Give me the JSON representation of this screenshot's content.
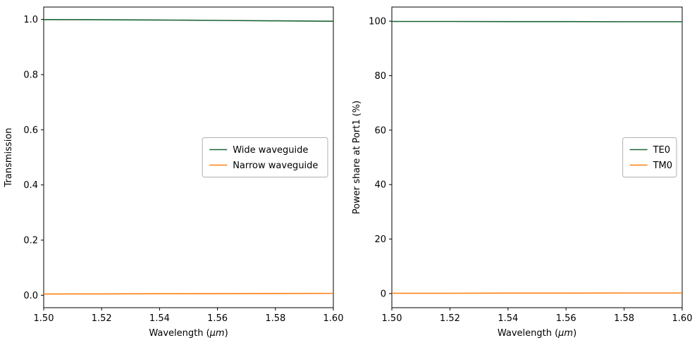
{
  "figure": {
    "background": "#ffffff",
    "axes_color": "#000000",
    "legend_border_color": "#b0b0b0",
    "legend_background": "#ffffff"
  },
  "chart_data": [
    {
      "type": "line",
      "title": "",
      "xlabel": {
        "pre": "Wavelength (",
        "math": "μm",
        "post": ")"
      },
      "ylabel": "Transmission",
      "xlim": [
        1.5,
        1.6
      ],
      "ylim": [
        -0.045,
        1.045
      ],
      "xticks": [
        1.5,
        1.52,
        1.54,
        1.56,
        1.58,
        1.6
      ],
      "xtick_labels": [
        "1.50",
        "1.52",
        "1.54",
        "1.56",
        "1.58",
        "1.60"
      ],
      "yticks": [
        0.0,
        0.2,
        0.4,
        0.6,
        0.8,
        1.0
      ],
      "ytick_labels": [
        "0.0",
        "0.2",
        "0.4",
        "0.6",
        "0.8",
        "1.0"
      ],
      "grid": false,
      "legend_position": "center-right",
      "x": [
        1.5,
        1.52,
        1.54,
        1.56,
        1.58,
        1.6
      ],
      "series": [
        {
          "name": "Wide waveguide",
          "color": "#1a6334",
          "values": [
            0.9995,
            0.999,
            0.998,
            0.9965,
            0.995,
            0.9935
          ]
        },
        {
          "name": "Narrow waveguide",
          "color": "#ff7f0e",
          "values": [
            0.0045,
            0.005,
            0.0055,
            0.006,
            0.0065,
            0.007
          ]
        }
      ]
    },
    {
      "type": "line",
      "title": "",
      "xlabel": {
        "pre": "Wavelength (",
        "math": "μm",
        "post": ")"
      },
      "ylabel": "Power share at Port1 (%)",
      "xlim": [
        1.5,
        1.6
      ],
      "ylim": [
        -5.2,
        105.2
      ],
      "xticks": [
        1.5,
        1.52,
        1.54,
        1.56,
        1.58,
        1.6
      ],
      "xtick_labels": [
        "1.50",
        "1.52",
        "1.54",
        "1.56",
        "1.58",
        "1.60"
      ],
      "yticks": [
        0,
        20,
        40,
        60,
        80,
        100
      ],
      "ytick_labels": [
        "0",
        "20",
        "40",
        "60",
        "80",
        "100"
      ],
      "grid": false,
      "legend_position": "center-right",
      "x": [
        1.5,
        1.52,
        1.54,
        1.56,
        1.58,
        1.6
      ],
      "series": [
        {
          "name": "TE0",
          "color": "#1a6334",
          "values": [
            99.9,
            99.9,
            99.85,
            99.85,
            99.8,
            99.8
          ]
        },
        {
          "name": "TM0",
          "color": "#ff7f0e",
          "values": [
            0.1,
            0.1,
            0.15,
            0.15,
            0.2,
            0.2
          ]
        }
      ]
    }
  ]
}
